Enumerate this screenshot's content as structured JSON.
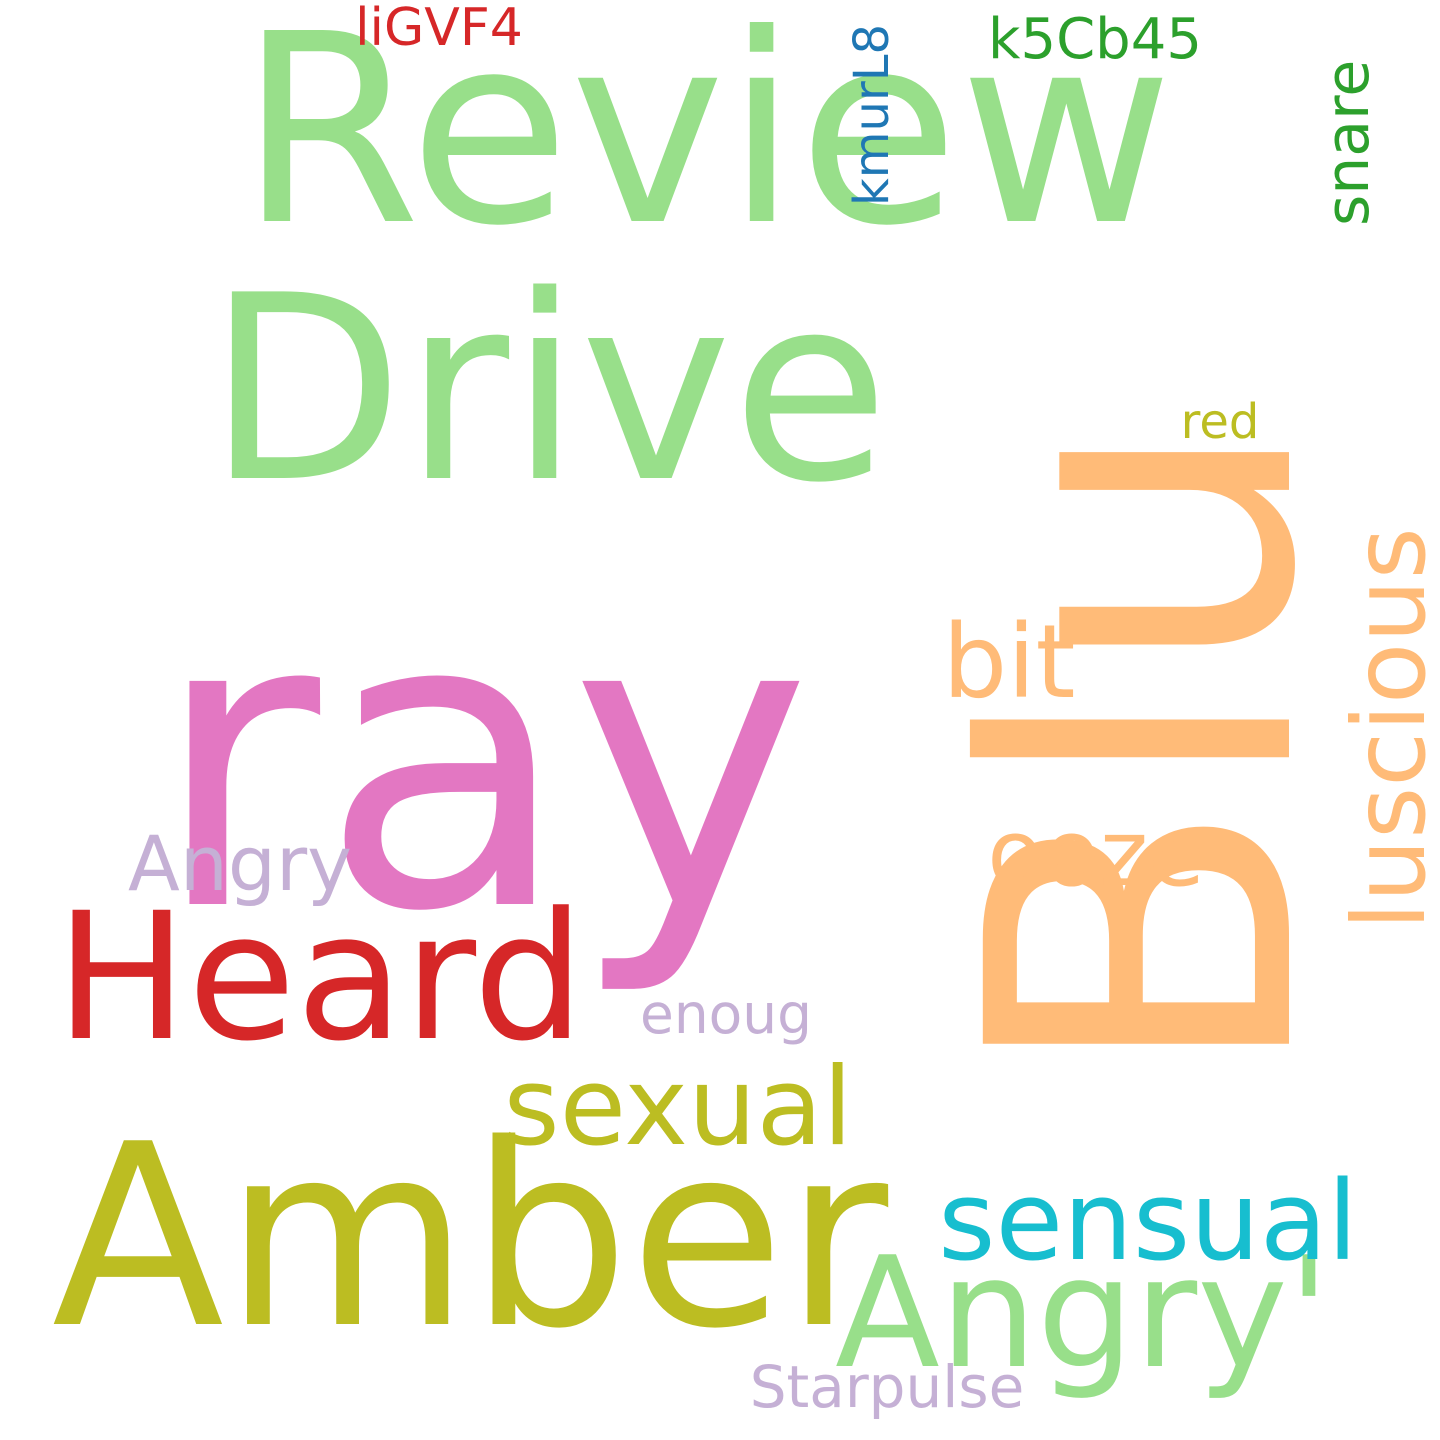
{
  "words": [
    {
      "text": "Review",
      "color": "#98df8a",
      "orientation": "horizontal"
    },
    {
      "text": "Drive",
      "color": "#98df8a",
      "orientation": "horizontal"
    },
    {
      "text": "ray",
      "color": "#e377c2",
      "orientation": "horizontal"
    },
    {
      "text": "Blu",
      "color": "#ffbb78",
      "orientation": "vertical"
    },
    {
      "text": "Heard",
      "color": "#d62728",
      "orientation": "horizontal"
    },
    {
      "text": "Amber",
      "color": "#bcbd22",
      "orientation": "horizontal"
    },
    {
      "text": "sexual",
      "color": "#bcbd22",
      "orientation": "horizontal"
    },
    {
      "text": "Angry'",
      "color": "#98df8a",
      "orientation": "horizontal"
    },
    {
      "text": "sensual",
      "color": "#17becf",
      "orientation": "horizontal"
    },
    {
      "text": "luscious",
      "color": "#ffbb78",
      "orientation": "vertical"
    },
    {
      "text": "bit",
      "color": "#ffbb78",
      "orientation": "horizontal"
    },
    {
      "text": "ooze",
      "color": "#ffbb78",
      "orientation": "horizontal"
    },
    {
      "text": "Angry",
      "color": "#c5b0d5",
      "orientation": "horizontal"
    },
    {
      "text": "snare",
      "color": "#2ca02c",
      "orientation": "vertical"
    },
    {
      "text": "k5Cb45",
      "color": "#2ca02c",
      "orientation": "horizontal"
    },
    {
      "text": "liGVF4",
      "color": "#d62728",
      "orientation": "horizontal"
    },
    {
      "text": "kmurL8",
      "color": "#1f77b4",
      "orientation": "vertical"
    },
    {
      "text": "red",
      "color": "#bcbd22",
      "orientation": "horizontal"
    },
    {
      "text": "enoug",
      "color": "#c5b0d5",
      "orientation": "horizontal"
    },
    {
      "text": "Starpulse",
      "color": "#c5b0d5",
      "orientation": "horizontal"
    }
  ]
}
